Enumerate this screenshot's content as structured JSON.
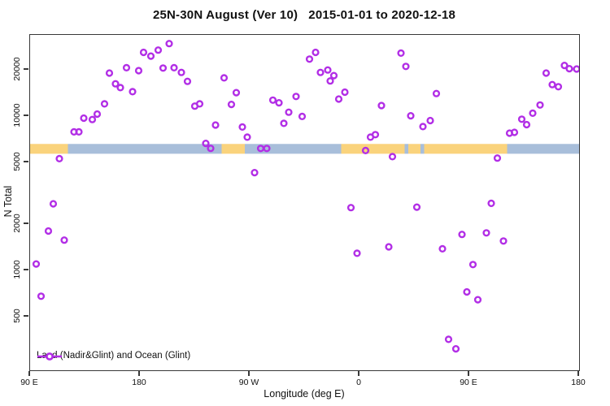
{
  "header": {
    "title": "25N-30N August (Ver 10)   2015-01-01 to 2020-12-18"
  },
  "chart_data": {
    "type": "scatter",
    "title": "25N-30N August (Ver 10)   2015-01-01 to 2020-12-18",
    "xlabel": "Longitude (deg E)",
    "ylabel": "N Total",
    "x_axis": {
      "range": [
        90,
        540
      ],
      "ticks": [
        90,
        180,
        270,
        360,
        450,
        540
      ],
      "tick_labels": [
        "90 E",
        "180",
        "90 W",
        "0",
        "90 E",
        "180"
      ],
      "note": "longitude axis wraps eastward from 90E around the globe to 180"
    },
    "y_axis": {
      "scale": "log",
      "range": [
        225,
        33600
      ],
      "ticks": [
        500,
        1000,
        2000,
        5000,
        10000,
        20000
      ],
      "tick_labels": [
        "500",
        "1000",
        "2000",
        "5000",
        "10000",
        "20000"
      ]
    },
    "legend": {
      "label": "Land (Nadir&Glint) and Ocean (Glint)",
      "position": "bottom-left"
    },
    "marker": {
      "shape": "open-circle",
      "color": "#B22EE6",
      "radius_px": 3.4,
      "stroke_px": 2.4
    },
    "map_band": {
      "description": "land/ocean strip drawn across the plot",
      "value_range": [
        5700,
        6600
      ],
      "land_color": "#FAD37C",
      "ocean_color": "#A8BEDA",
      "segments": [
        {
          "lon_start": 90,
          "lon_end": 121,
          "surface": "land"
        },
        {
          "lon_start": 121,
          "lon_end": 247,
          "surface": "ocean"
        },
        {
          "lon_start": 247,
          "lon_end": 266,
          "surface": "land"
        },
        {
          "lon_start": 266,
          "lon_end": 345,
          "surface": "ocean"
        },
        {
          "lon_start": 345,
          "lon_end": 397,
          "surface": "land"
        },
        {
          "lon_start": 397,
          "lon_end": 400,
          "surface": "ocean"
        },
        {
          "lon_start": 400,
          "lon_end": 410,
          "surface": "land"
        },
        {
          "lon_start": 410,
          "lon_end": 413,
          "surface": "ocean"
        },
        {
          "lon_start": 413,
          "lon_end": 481,
          "surface": "land"
        },
        {
          "lon_start": 481,
          "lon_end": 540,
          "surface": "ocean"
        }
      ]
    },
    "points": [
      [
        95,
        1100
      ],
      [
        99,
        680
      ],
      [
        105,
        1800
      ],
      [
        109,
        2700
      ],
      [
        114,
        5300
      ],
      [
        118,
        1570
      ],
      [
        126,
        7900
      ],
      [
        130,
        7900
      ],
      [
        134,
        9700
      ],
      [
        141,
        9500
      ],
      [
        145,
        10300
      ],
      [
        151,
        12000
      ],
      [
        155,
        19000
      ],
      [
        160,
        16200
      ],
      [
        164,
        15300
      ],
      [
        169,
        20600
      ],
      [
        174,
        14400
      ],
      [
        179,
        19700
      ],
      [
        183,
        25900
      ],
      [
        189,
        24500
      ],
      [
        195,
        26800
      ],
      [
        199,
        20500
      ],
      [
        204,
        29500
      ],
      [
        208,
        20600
      ],
      [
        214,
        19200
      ],
      [
        219,
        16800
      ],
      [
        225,
        11600
      ],
      [
        229,
        12000
      ],
      [
        234,
        6650
      ],
      [
        238,
        6180
      ],
      [
        242,
        8750
      ],
      [
        249,
        17700
      ],
      [
        255,
        11900
      ],
      [
        259,
        14200
      ],
      [
        264,
        8500
      ],
      [
        268,
        7300
      ],
      [
        274,
        4300
      ],
      [
        279,
        6170
      ],
      [
        284,
        6170
      ],
      [
        289,
        12700
      ],
      [
        294,
        12200
      ],
      [
        298,
        8980
      ],
      [
        302,
        10600
      ],
      [
        308,
        13400
      ],
      [
        313,
        9950
      ],
      [
        319,
        23400
      ],
      [
        324,
        25900
      ],
      [
        328,
        19200
      ],
      [
        334,
        19900
      ],
      [
        336,
        16900
      ],
      [
        339,
        18300
      ],
      [
        343,
        12900
      ],
      [
        348,
        14300
      ],
      [
        353,
        2550
      ],
      [
        358,
        1290
      ],
      [
        365,
        5980
      ],
      [
        369,
        7300
      ],
      [
        373,
        7580
      ],
      [
        378,
        11700
      ],
      [
        384,
        1420
      ],
      [
        387,
        5460
      ],
      [
        394,
        25600
      ],
      [
        398,
        21000
      ],
      [
        402,
        10050
      ],
      [
        407,
        2570
      ],
      [
        412,
        8550
      ],
      [
        418,
        9350
      ],
      [
        423,
        14000
      ],
      [
        428,
        1380
      ],
      [
        433,
        357
      ],
      [
        439,
        310
      ],
      [
        444,
        1710
      ],
      [
        448,
        725
      ],
      [
        453,
        1090
      ],
      [
        457,
        645
      ],
      [
        464,
        1750
      ],
      [
        468,
        2720
      ],
      [
        473,
        5340
      ],
      [
        478,
        1550
      ],
      [
        483,
        7750
      ],
      [
        487,
        7850
      ],
      [
        493,
        9550
      ],
      [
        497,
        8800
      ],
      [
        502,
        10450
      ],
      [
        508,
        11800
      ],
      [
        513,
        19000
      ],
      [
        518,
        16000
      ],
      [
        523,
        15500
      ],
      [
        528,
        21300
      ],
      [
        532,
        20300
      ],
      [
        538,
        20200
      ]
    ]
  },
  "colors": {
    "marker": "#B22EE6",
    "land_band": "#FAD37C",
    "ocean_band": "#A8BEDA",
    "axis": "#383838",
    "text": "#111111"
  }
}
